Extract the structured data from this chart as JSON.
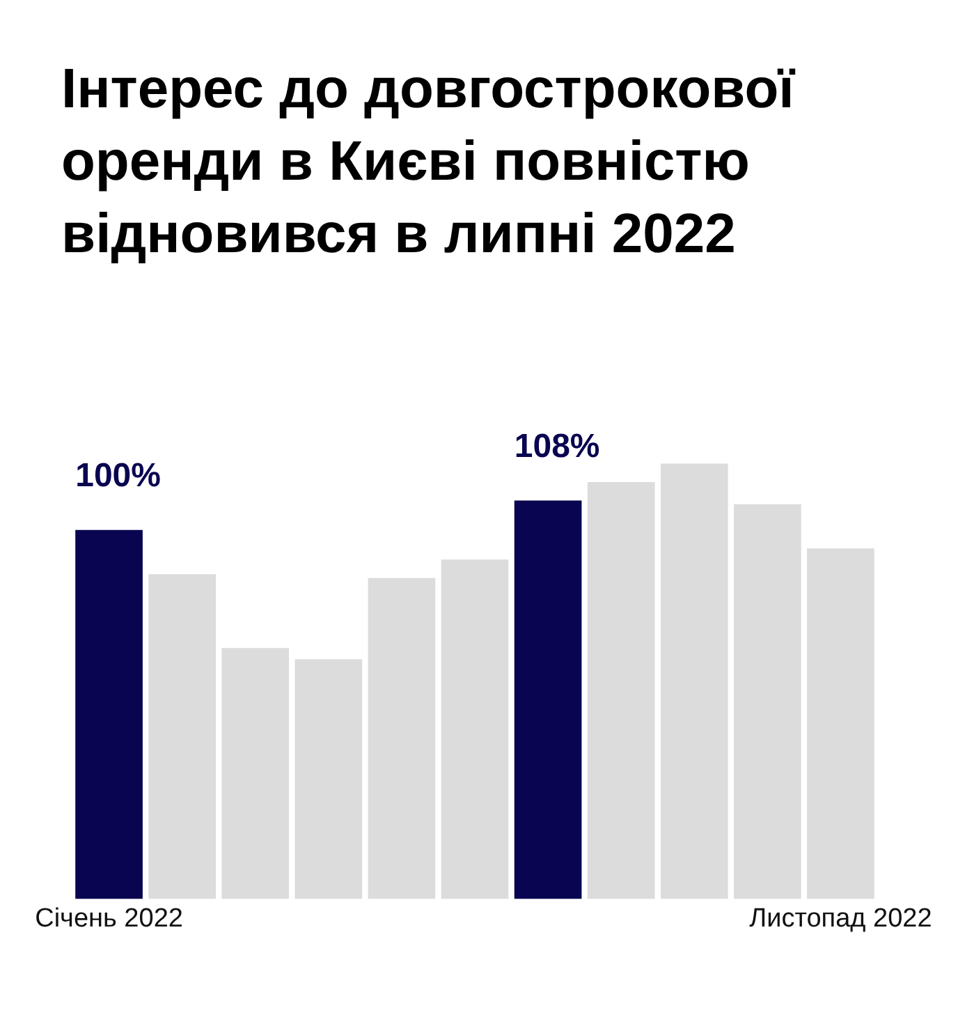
{
  "chart_data": {
    "type": "bar",
    "title": "Інтерес до довгострокової оренди в Києві повністю відновився в липні 2022",
    "categories": [
      "Січень 2022",
      null,
      null,
      null,
      null,
      null,
      null,
      null,
      null,
      null,
      "Листопад 2022"
    ],
    "values": [
      100,
      88,
      68,
      65,
      87,
      92,
      108,
      113,
      118,
      107,
      95
    ],
    "colors": [
      "#0a0550",
      "#dcdcdc",
      "#dcdcdc",
      "#dcdcdc",
      "#dcdcdc",
      "#dcdcdc",
      "#0a0550",
      "#dcdcdc",
      "#dcdcdc",
      "#dcdcdc",
      "#dcdcdc"
    ],
    "value_labels": [
      "100%",
      null,
      null,
      null,
      null,
      null,
      "108%",
      null,
      null,
      null,
      null
    ],
    "grid": false,
    "legend": false
  }
}
